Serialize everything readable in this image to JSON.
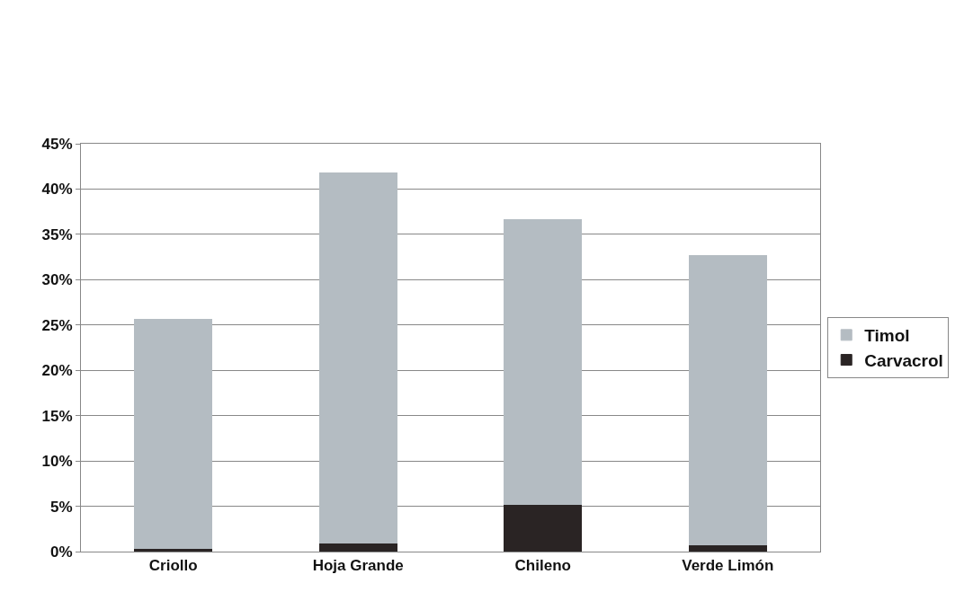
{
  "chart_data": {
    "type": "bar",
    "stacked": true,
    "categories": [
      "Criollo",
      "Hoja Grande",
      "Chileno",
      "Verde Limón"
    ],
    "series": [
      {
        "name": "Carvacrol",
        "color": "#2a2424",
        "values": [
          0.3,
          0.9,
          5.2,
          0.7
        ]
      },
      {
        "name": "Timol",
        "color": "#b4bcc2",
        "values": [
          25.3,
          40.9,
          31.4,
          32.0
        ]
      }
    ],
    "ylim": [
      0,
      45
    ],
    "yticks": [
      {
        "value": 0,
        "label": "0%"
      },
      {
        "value": 5,
        "label": "5%"
      },
      {
        "value": 10,
        "label": "10%"
      },
      {
        "value": 15,
        "label": "15%"
      },
      {
        "value": 20,
        "label": "20%"
      },
      {
        "value": 25,
        "label": "25%"
      },
      {
        "value": 30,
        "label": "30%"
      },
      {
        "value": 35,
        "label": "35%"
      },
      {
        "value": 40,
        "label": "40%"
      },
      {
        "value": 45,
        "label": "45%"
      }
    ],
    "grid": "y",
    "legend": "right"
  }
}
